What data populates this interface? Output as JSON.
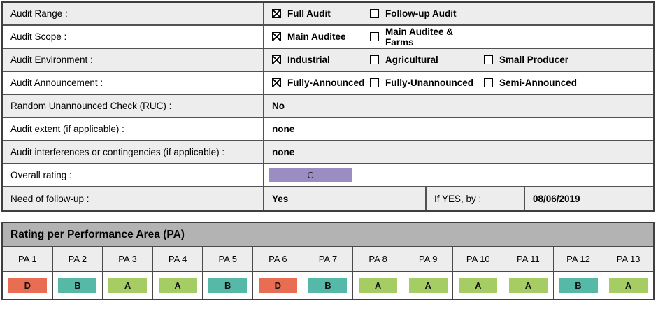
{
  "form": {
    "rows": [
      {
        "label": "Audit Range :",
        "options": [
          {
            "label": "Full Audit",
            "state": "checked"
          },
          {
            "label": "Follow-up Audit",
            "state": "unchecked"
          }
        ]
      },
      {
        "label": "Audit Scope :",
        "options": [
          {
            "label": "Main Auditee",
            "state": "checked"
          },
          {
            "label": "Main Auditee & Farms",
            "state": "unchecked"
          }
        ]
      },
      {
        "label": "Audit Environment :",
        "options": [
          {
            "label": "Industrial",
            "state": "checked"
          },
          {
            "label": "Agricultural",
            "state": "unchecked"
          },
          {
            "label": "Small Producer",
            "state": "unchecked"
          }
        ]
      },
      {
        "label": "Audit Announcement :",
        "options": [
          {
            "label": "Fully-Announced",
            "state": "checked"
          },
          {
            "label": "Fully-Unannounced",
            "state": "unchecked"
          },
          {
            "label": "Semi-Announced",
            "state": "unchecked"
          }
        ]
      },
      {
        "label": "Random Unannounced Check (RUC) :",
        "value": "No"
      },
      {
        "label": "Audit extent (if applicable) :",
        "value": "none"
      },
      {
        "label": "Audit interferences or contingencies (if applicable) :",
        "value": "none"
      },
      {
        "label": "Overall rating :",
        "value": "C",
        "badge_color": "#9c8cc4"
      },
      {
        "label": "Need of follow-up :",
        "value": "Yes",
        "if_yes_label": "If YES, by :",
        "if_yes_date": "08/06/2019"
      }
    ]
  },
  "pa": {
    "title": "Rating per Performance Area (PA)",
    "areas": [
      {
        "label": "PA 1",
        "rating": "D",
        "color": "#e96d52"
      },
      {
        "label": "PA 2",
        "rating": "B",
        "color": "#56b9a7"
      },
      {
        "label": "PA 3",
        "rating": "A",
        "color": "#a6cc64"
      },
      {
        "label": "PA 4",
        "rating": "A",
        "color": "#a6cc64"
      },
      {
        "label": "PA 5",
        "rating": "B",
        "color": "#56b9a7"
      },
      {
        "label": "PA 6",
        "rating": "D",
        "color": "#e96d52"
      },
      {
        "label": "PA 7",
        "rating": "B",
        "color": "#56b9a7"
      },
      {
        "label": "PA 8",
        "rating": "A",
        "color": "#a6cc64"
      },
      {
        "label": "PA 9",
        "rating": "A",
        "color": "#a6cc64"
      },
      {
        "label": "PA 10",
        "rating": "A",
        "color": "#a6cc64"
      },
      {
        "label": "PA 11",
        "rating": "A",
        "color": "#a6cc64"
      },
      {
        "label": "PA 12",
        "rating": "B",
        "color": "#56b9a7"
      },
      {
        "label": "PA 13",
        "rating": "A",
        "color": "#a6cc64"
      }
    ]
  },
  "colors": {
    "rating_a": "#a6cc64",
    "rating_b": "#56b9a7",
    "rating_c": "#9c8cc4",
    "rating_d": "#e96d52",
    "row_alt": "#ededed",
    "section_header": "#b3b3b3"
  }
}
